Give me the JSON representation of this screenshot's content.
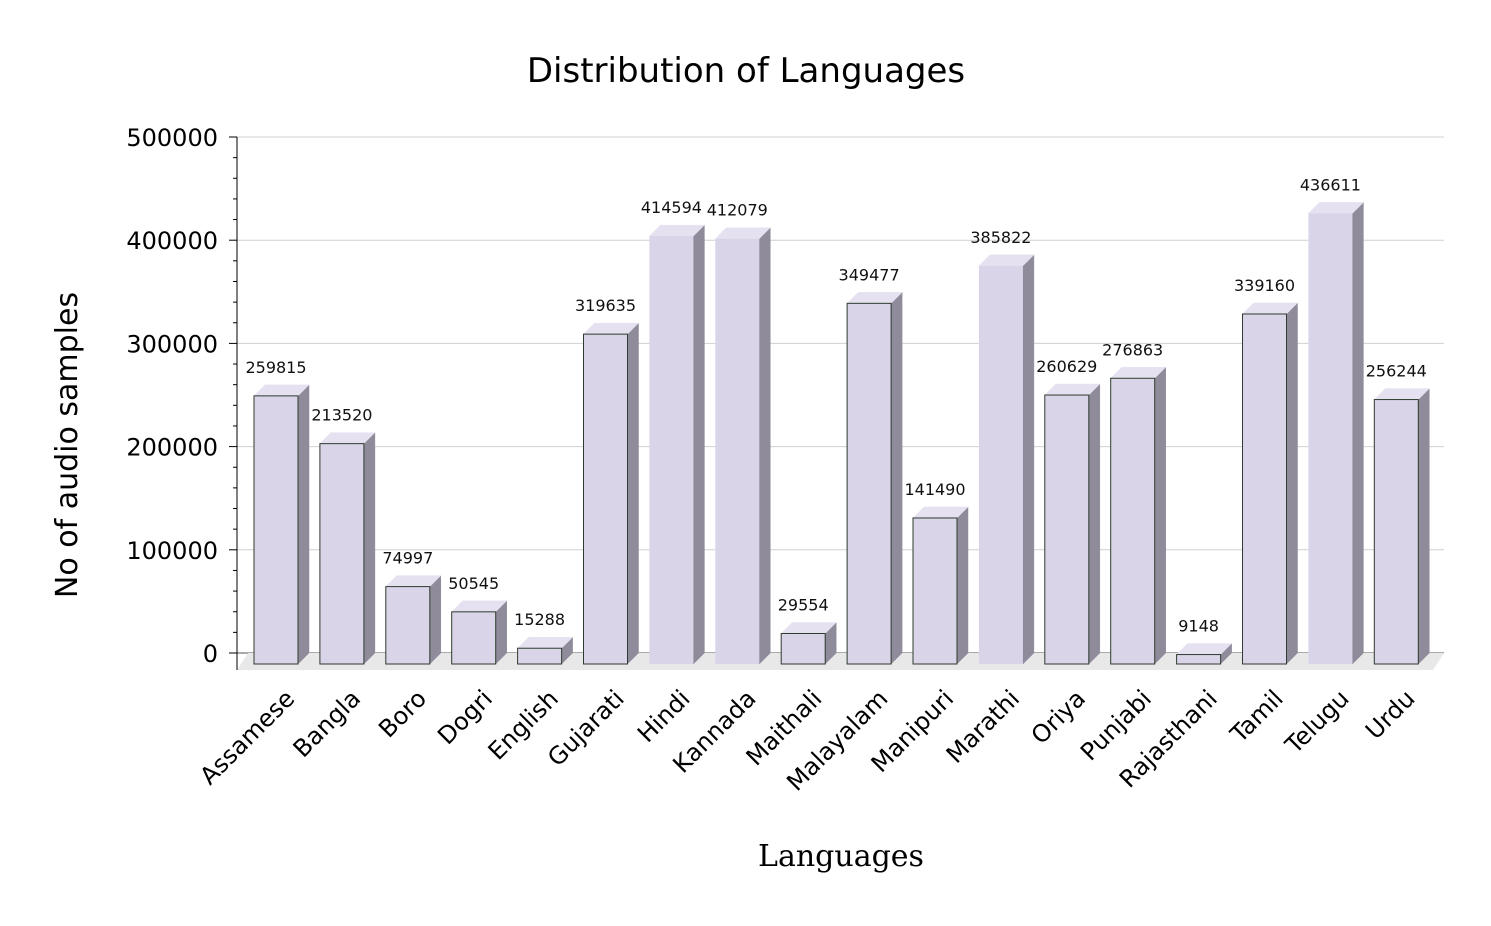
{
  "chart_data": {
    "type": "bar",
    "title": "Distribution of Languages",
    "xlabel": "Languages",
    "ylabel": "No of audio samples",
    "ylim": [
      0,
      500000
    ],
    "yticks": [
      0,
      100000,
      200000,
      300000,
      400000,
      500000
    ],
    "grid": true,
    "legend": "none",
    "categories": [
      "Assamese",
      "Bangla",
      "Boro",
      "Dogri",
      "English",
      "Gujarati",
      "Hindi",
      "Kannada",
      "Maithali",
      "Malayalam",
      "Manipuri",
      "Marathi",
      "Oriya",
      "Punjabi",
      "Rajasthani",
      "Tamil",
      "Telugu",
      "Urdu"
    ],
    "values": [
      259815,
      213520,
      74997,
      50545,
      15288,
      319635,
      414594,
      412079,
      29554,
      349477,
      141490,
      385822,
      260629,
      276863,
      9148,
      339160,
      436611,
      256244
    ],
    "colors": {
      "bar_front": "#d9d4e8",
      "bar_side": "#8f8b9b",
      "bar_top": "#e6e1f0",
      "bar_edge": "#2e3b2e",
      "floor": "#e8e8e8",
      "grid": "#d0d0d0"
    }
  }
}
